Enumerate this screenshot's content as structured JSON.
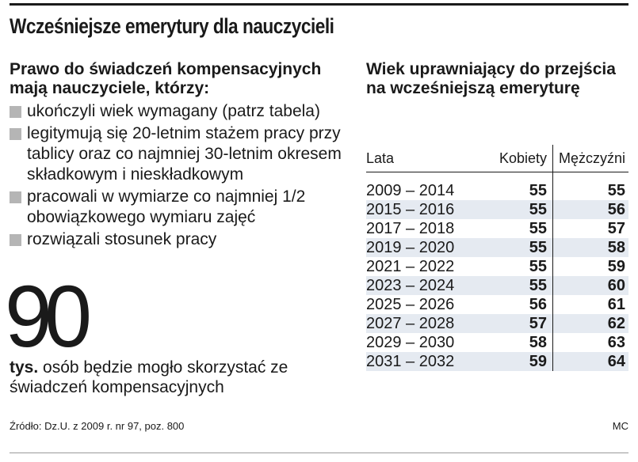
{
  "title": "Wcześniejsze emerytury dla nauczycieli",
  "left": {
    "heading": "Prawo do świadczeń kompensacyjnych mają nauczyciele, którzy:",
    "bullets": [
      "ukończyli wiek wymagany (patrz tabela)",
      "legitymują się 20-letnim stażem pracy przy tablicy oraz co najmniej 30-letnim okresem składkowym i nieskładkowym",
      "pracowali w wymiarze co najmniej 1/2 obowiązkowego wymiaru zajęć",
      "rozwiązali stosunek pracy"
    ],
    "stat_number": "90",
    "stat_unit": "tys.",
    "stat_text": " osób będzie mogło skorzystać ze świadczeń kompensacyjnych"
  },
  "right": {
    "heading": "Wiek uprawniający do przejścia na wcześniejszą emeryturę",
    "table": {
      "headers": [
        "Lata",
        "Kobiety",
        "Mężczyźni"
      ],
      "rows": [
        [
          "2009 – 2014",
          "55",
          "55"
        ],
        [
          "2015 – 2016",
          "55",
          "56"
        ],
        [
          "2017 – 2018",
          "55",
          "57"
        ],
        [
          "2019 – 2020",
          "55",
          "58"
        ],
        [
          "2021 – 2022",
          "55",
          "59"
        ],
        [
          "2023 – 2024",
          "55",
          "60"
        ],
        [
          "2025 – 2026",
          "56",
          "61"
        ],
        [
          "2027 – 2028",
          "57",
          "62"
        ],
        [
          "2029 – 2030",
          "58",
          "63"
        ],
        [
          "2031 – 2032",
          "59",
          "64"
        ]
      ]
    }
  },
  "footer": {
    "source": "Źródło: Dz.U. z 2009 r. nr 97, poz. 800",
    "author": "MC"
  },
  "colors": {
    "text": "#1a1a1a",
    "bullet_square": "#b5b5b5",
    "row_stripe": "#e5eaf1"
  }
}
